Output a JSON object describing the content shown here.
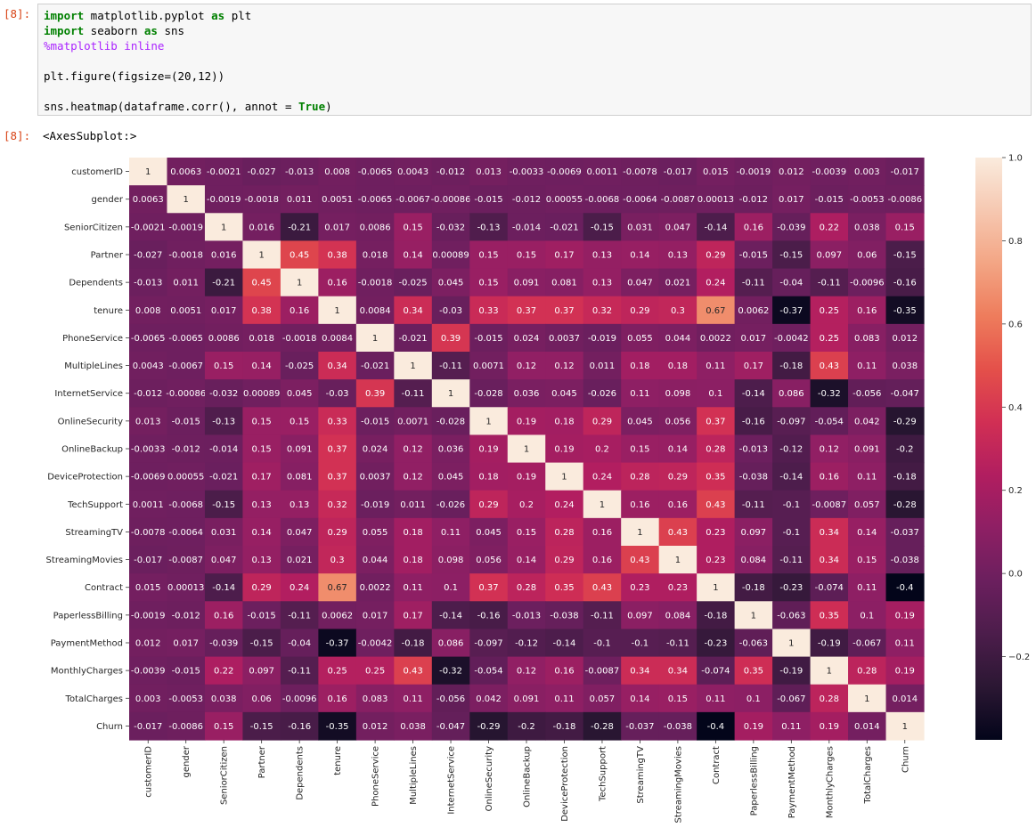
{
  "notebook": {
    "in_prompt": "[8]:",
    "out_prompt": "[8]:",
    "code_lines": [
      [
        {
          "t": "import",
          "c": "kw"
        },
        {
          "t": " matplotlib.pyplot ",
          "c": ""
        },
        {
          "t": "as",
          "c": "kw"
        },
        {
          "t": " plt",
          "c": ""
        }
      ],
      [
        {
          "t": "import",
          "c": "kw"
        },
        {
          "t": " seaborn ",
          "c": ""
        },
        {
          "t": "as",
          "c": "kw"
        },
        {
          "t": " sns",
          "c": ""
        }
      ],
      [
        {
          "t": "%matplotlib inline",
          "c": "mg"
        }
      ],
      [],
      [
        {
          "t": "plt.figure(figsize",
          "c": ""
        },
        {
          "t": "=",
          "c": ""
        },
        {
          "t": "(20,12))",
          "c": ""
        }
      ],
      [],
      [
        {
          "t": "sns.heatmap(dataframe.corr(), annot ",
          "c": ""
        },
        {
          "t": "=",
          "c": ""
        },
        {
          "t": " ",
          "c": ""
        },
        {
          "t": "True",
          "c": "kw"
        },
        {
          "t": ")",
          "c": ""
        }
      ]
    ],
    "output_text": "<AxesSubplot:>"
  },
  "chart_data": {
    "type": "heatmap",
    "x_labels": [
      "customerID",
      "gender",
      "SeniorCitizen",
      "Partner",
      "Dependents",
      "tenure",
      "PhoneService",
      "MultipleLines",
      "InternetService",
      "OnlineSecurity",
      "OnlineBackup",
      "DeviceProtection",
      "TechSupport",
      "StreamingTV",
      "StreamingMovies",
      "Contract",
      "PaperlessBilling",
      "PaymentMethod",
      "MonthlyCharges",
      "TotalCharges",
      "Churn"
    ],
    "y_labels": [
      "customerID",
      "gender",
      "SeniorCitizen",
      "Partner",
      "Dependents",
      "tenure",
      "PhoneService",
      "MultipleLines",
      "InternetService",
      "OnlineSecurity",
      "OnlineBackup",
      "DeviceProtection",
      "TechSupport",
      "StreamingTV",
      "StreamingMovies",
      "Contract",
      "PaperlessBilling",
      "PaymentMethod",
      "MonthlyCharges",
      "TotalCharges",
      "Churn"
    ],
    "values": [
      [
        "1",
        "0.0063",
        "-0.0021",
        "-0.027",
        "-0.013",
        "0.008",
        "-0.0065",
        "0.0043",
        "-0.012",
        "0.013",
        "-0.0033",
        "-0.0069",
        "0.0011",
        "-0.0078",
        "-0.017",
        "0.015",
        "-0.0019",
        "0.012",
        "-0.0039",
        "0.003",
        "-0.017"
      ],
      [
        "0.0063",
        "1",
        "-0.0019",
        "-0.0018",
        "0.011",
        "0.0051",
        "-0.0065",
        "-0.0067",
        "-0.00086",
        "-0.015",
        "-0.012",
        "0.00055",
        "-0.0068",
        "-0.0064",
        "-0.0087",
        "0.00013",
        "-0.012",
        "0.017",
        "-0.015",
        "-0.0053",
        "-0.0086"
      ],
      [
        "-0.0021",
        "-0.0019",
        "1",
        "0.016",
        "-0.21",
        "0.017",
        "0.0086",
        "0.15",
        "-0.032",
        "-0.13",
        "-0.014",
        "-0.021",
        "-0.15",
        "0.031",
        "0.047",
        "-0.14",
        "0.16",
        "-0.039",
        "0.22",
        "0.038",
        "0.15"
      ],
      [
        "-0.027",
        "-0.0018",
        "0.016",
        "1",
        "0.45",
        "0.38",
        "0.018",
        "0.14",
        "0.00089",
        "0.15",
        "0.15",
        "0.17",
        "0.13",
        "0.14",
        "0.13",
        "0.29",
        "-0.015",
        "-0.15",
        "0.097",
        "0.06",
        "-0.15"
      ],
      [
        "-0.013",
        "0.011",
        "-0.21",
        "0.45",
        "1",
        "0.16",
        "-0.0018",
        "-0.025",
        "0.045",
        "0.15",
        "0.091",
        "0.081",
        "0.13",
        "0.047",
        "0.021",
        "0.24",
        "-0.11",
        "-0.04",
        "-0.11",
        "-0.0096",
        "-0.16"
      ],
      [
        "0.008",
        "0.0051",
        "0.017",
        "0.38",
        "0.16",
        "1",
        "0.0084",
        "0.34",
        "-0.03",
        "0.33",
        "0.37",
        "0.37",
        "0.32",
        "0.29",
        "0.3",
        "0.67",
        "0.0062",
        "-0.37",
        "0.25",
        "0.16",
        "-0.35"
      ],
      [
        "-0.0065",
        "-0.0065",
        "0.0086",
        "0.018",
        "-0.0018",
        "0.0084",
        "1",
        "-0.021",
        "0.39",
        "-0.015",
        "0.024",
        "0.0037",
        "-0.019",
        "0.055",
        "0.044",
        "0.0022",
        "0.017",
        "-0.0042",
        "0.25",
        "0.083",
        "0.012"
      ],
      [
        "0.0043",
        "-0.0067",
        "0.15",
        "0.14",
        "-0.025",
        "0.34",
        "-0.021",
        "1",
        "-0.11",
        "0.0071",
        "0.12",
        "0.12",
        "0.011",
        "0.18",
        "0.18",
        "0.11",
        "0.17",
        "-0.18",
        "0.43",
        "0.11",
        "0.038"
      ],
      [
        "-0.012",
        "-0.00086",
        "-0.032",
        "0.00089",
        "0.045",
        "-0.03",
        "0.39",
        "-0.11",
        "1",
        "-0.028",
        "0.036",
        "0.045",
        "-0.026",
        "0.11",
        "0.098",
        "0.1",
        "-0.14",
        "0.086",
        "-0.32",
        "-0.056",
        "-0.047"
      ],
      [
        "0.013",
        "-0.015",
        "-0.13",
        "0.15",
        "0.15",
        "0.33",
        "-0.015",
        "0.0071",
        "-0.028",
        "1",
        "0.19",
        "0.18",
        "0.29",
        "0.045",
        "0.056",
        "0.37",
        "-0.16",
        "-0.097",
        "-0.054",
        "0.042",
        "-0.29"
      ],
      [
        "-0.0033",
        "-0.012",
        "-0.014",
        "0.15",
        "0.091",
        "0.37",
        "0.024",
        "0.12",
        "0.036",
        "0.19",
        "1",
        "0.19",
        "0.2",
        "0.15",
        "0.14",
        "0.28",
        "-0.013",
        "-0.12",
        "0.12",
        "0.091",
        "-0.2"
      ],
      [
        "-0.0069",
        "0.00055",
        "-0.021",
        "0.17",
        "0.081",
        "0.37",
        "0.0037",
        "0.12",
        "0.045",
        "0.18",
        "0.19",
        "1",
        "0.24",
        "0.28",
        "0.29",
        "0.35",
        "-0.038",
        "-0.14",
        "0.16",
        "0.11",
        "-0.18"
      ],
      [
        "0.0011",
        "-0.0068",
        "-0.15",
        "0.13",
        "0.13",
        "0.32",
        "-0.019",
        "0.011",
        "-0.026",
        "0.29",
        "0.2",
        "0.24",
        "1",
        "0.16",
        "0.16",
        "0.43",
        "-0.11",
        "-0.1",
        "-0.0087",
        "0.057",
        "-0.28"
      ],
      [
        "-0.0078",
        "-0.0064",
        "0.031",
        "0.14",
        "0.047",
        "0.29",
        "0.055",
        "0.18",
        "0.11",
        "0.045",
        "0.15",
        "0.28",
        "0.16",
        "1",
        "0.43",
        "0.23",
        "0.097",
        "-0.1",
        "0.34",
        "0.14",
        "-0.037"
      ],
      [
        "-0.017",
        "-0.0087",
        "0.047",
        "0.13",
        "0.021",
        "0.3",
        "0.044",
        "0.18",
        "0.098",
        "0.056",
        "0.14",
        "0.29",
        "0.16",
        "0.43",
        "1",
        "0.23",
        "0.084",
        "-0.11",
        "0.34",
        "0.15",
        "-0.038"
      ],
      [
        "0.015",
        "0.00013",
        "-0.14",
        "0.29",
        "0.24",
        "0.67",
        "0.0022",
        "0.11",
        "0.1",
        "0.37",
        "0.28",
        "0.35",
        "0.43",
        "0.23",
        "0.23",
        "1",
        "-0.18",
        "-0.23",
        "-0.074",
        "0.11",
        "-0.4"
      ],
      [
        "-0.0019",
        "-0.012",
        "0.16",
        "-0.015",
        "-0.11",
        "0.0062",
        "0.017",
        "0.17",
        "-0.14",
        "-0.16",
        "-0.013",
        "-0.038",
        "-0.11",
        "0.097",
        "0.084",
        "-0.18",
        "1",
        "-0.063",
        "0.35",
        "0.1",
        "0.19"
      ],
      [
        "0.012",
        "0.017",
        "-0.039",
        "-0.15",
        "-0.04",
        "-0.37",
        "-0.0042",
        "-0.18",
        "0.086",
        "-0.097",
        "-0.12",
        "-0.14",
        "-0.1",
        "-0.1",
        "-0.11",
        "-0.23",
        "-0.063",
        "1",
        "-0.19",
        "-0.067",
        "0.11"
      ],
      [
        "-0.0039",
        "-0.015",
        "0.22",
        "0.097",
        "-0.11",
        "0.25",
        "0.25",
        "0.43",
        "-0.32",
        "-0.054",
        "0.12",
        "0.16",
        "-0.0087",
        "0.34",
        "0.34",
        "-0.074",
        "0.35",
        "-0.19",
        "1",
        "0.28",
        "0.19"
      ],
      [
        "0.003",
        "-0.0053",
        "0.038",
        "0.06",
        "-0.0096",
        "0.16",
        "0.083",
        "0.11",
        "-0.056",
        "0.042",
        "0.091",
        "0.11",
        "0.057",
        "0.14",
        "0.15",
        "0.11",
        "0.1",
        "-0.067",
        "0.28",
        "1",
        "0.014"
      ],
      [
        "-0.017",
        "-0.0086",
        "0.15",
        "-0.15",
        "-0.16",
        "-0.35",
        "0.012",
        "0.038",
        "-0.047",
        "-0.29",
        "-0.2",
        "-0.18",
        "-0.28",
        "-0.037",
        "-0.038",
        "-0.4",
        "0.19",
        "0.11",
        "0.19",
        "0.014",
        "1"
      ]
    ],
    "colorbar": {
      "min": -0.4,
      "max": 1.0,
      "ticks": [
        1.0,
        0.8,
        0.6,
        0.4,
        0.2,
        0.0,
        -0.2
      ],
      "tick_labels": [
        "1.0",
        "0.8",
        "0.6",
        "0.4",
        "0.2",
        "0.0",
        "−0.2"
      ]
    },
    "colormap": [
      "#03051a",
      "#2b1733",
      "#4c1d4b",
      "#6b1f5e",
      "#8e1f64",
      "#b11e60",
      "#d12f54",
      "#e4504a",
      "#ee7c5c",
      "#f3a584",
      "#f6c8b1",
      "#faebdd"
    ]
  }
}
